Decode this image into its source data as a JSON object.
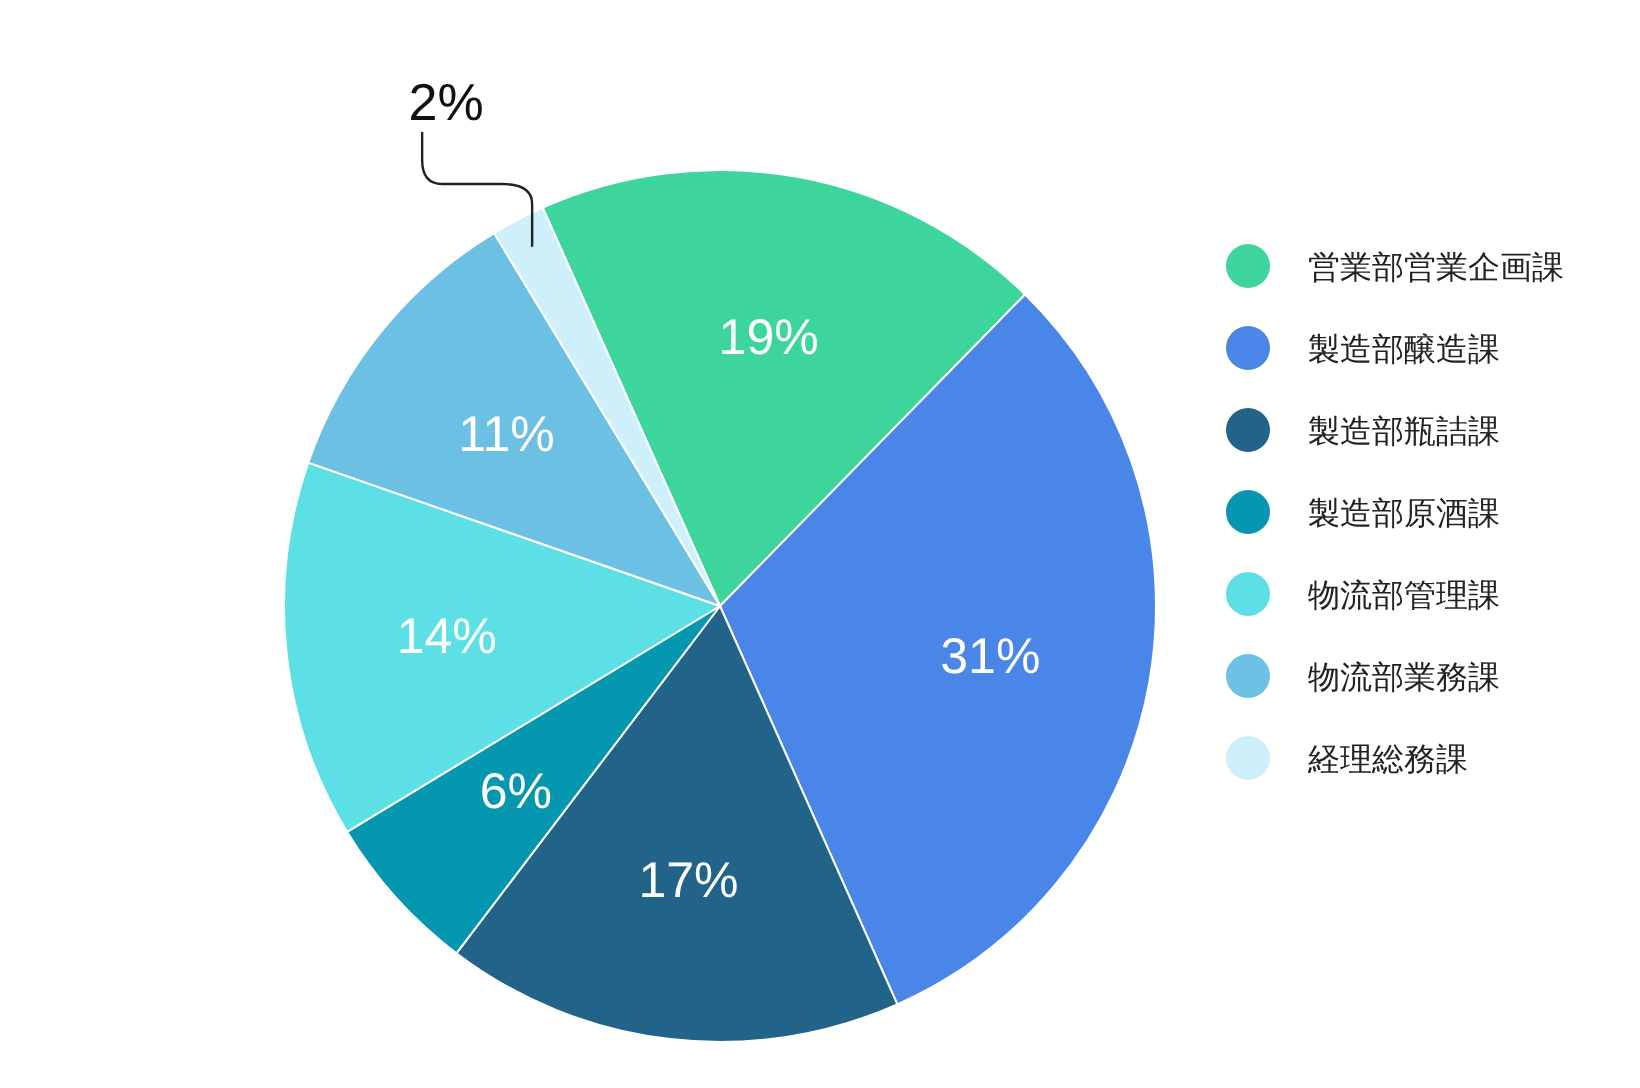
{
  "chart_data": {
    "type": "pie",
    "categories": [
      "営業部営業企画課",
      "製造部醸造課",
      "製造部瓶詰課",
      "製造部原酒課",
      "物流部管理課",
      "物流部業務課",
      "経理総務課"
    ],
    "values": [
      19,
      31,
      17,
      6,
      14,
      11,
      2
    ],
    "colors": [
      "#3dd59b",
      "#4a86e8",
      "#22638a",
      "#0596b0",
      "#5ce0e6",
      "#6bc0e3",
      "#cdf0fb"
    ],
    "value_labels": [
      "19%",
      "31%",
      "17%",
      "6%",
      "14%",
      "11%",
      "2%"
    ],
    "legend": "right"
  }
}
